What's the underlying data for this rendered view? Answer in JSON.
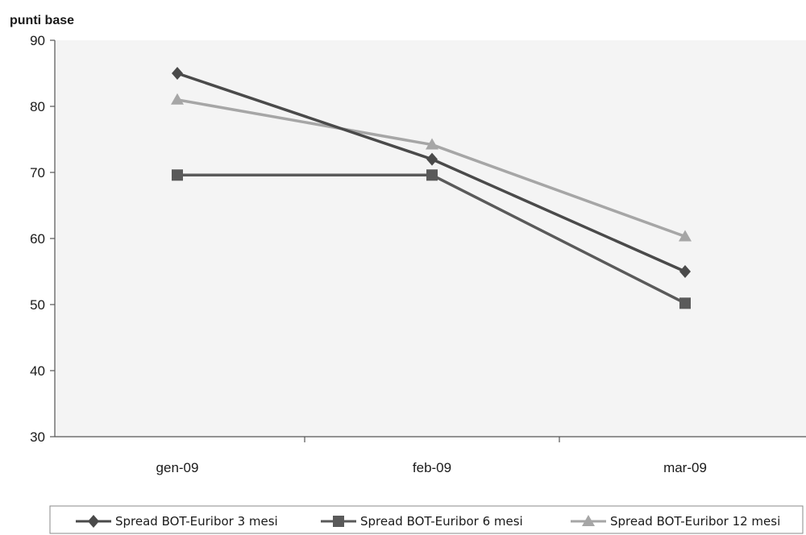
{
  "chart_data": {
    "type": "line",
    "ylabel": "punti base",
    "xlabel": "",
    "title": "",
    "categories": [
      "gen-09",
      "feb-09",
      "mar-09"
    ],
    "ylim": [
      30,
      90
    ],
    "yticks": [
      30,
      40,
      50,
      60,
      70,
      80,
      90
    ],
    "grid": false,
    "legend_position": "bottom",
    "series": [
      {
        "name": "Spread BOT-Euribor 3 mesi",
        "values": [
          85,
          72,
          55
        ],
        "marker": "diamond",
        "color": "#4a4a4a"
      },
      {
        "name": "Spread BOT-Euribor 6 mesi",
        "values": [
          69.6,
          69.6,
          50.2
        ],
        "marker": "square",
        "color": "#5a5a5a"
      },
      {
        "name": "Spread BOT-Euribor 12 mesi",
        "values": [
          81,
          74.2,
          60.3
        ],
        "marker": "triangle",
        "color": "#a6a6a6"
      }
    ]
  }
}
